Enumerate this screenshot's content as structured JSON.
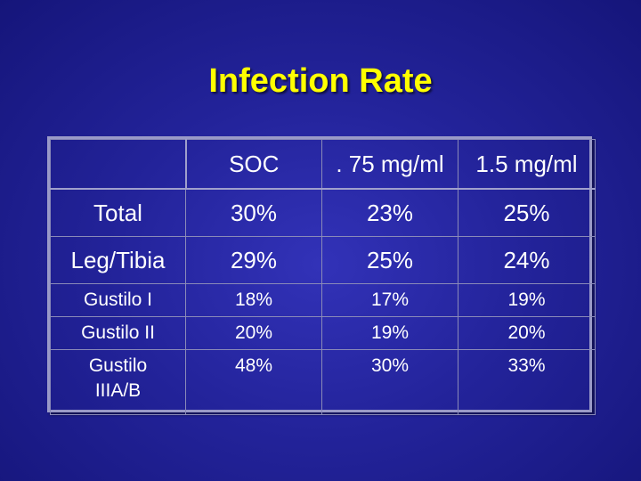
{
  "title": "Infection Rate",
  "table": {
    "header": [
      "",
      "SOC",
      ". 75 mg/ml",
      "1.5 mg/ml"
    ],
    "rows": [
      {
        "label": "Total",
        "soc": "30%",
        "dose075": "23%",
        "dose15": "25%"
      },
      {
        "label": "Leg/Tibia",
        "soc": "29%",
        "dose075": "25%",
        "dose15": "24%"
      },
      {
        "label": "Gustilo I",
        "soc": "18%",
        "dose075": "17%",
        "dose15": "19%"
      },
      {
        "label": "Gustilo II",
        "soc": "20%",
        "dose075": "19%",
        "dose15": "20%"
      },
      {
        "label_line1": "Gustilo",
        "label_line2": "IIIA/B",
        "soc": "48%",
        "dose075": "30%",
        "dose15": "33%"
      }
    ]
  },
  "colors": {
    "background": "#23239a",
    "title": "#ffff00",
    "text": "#ffffff",
    "grid": "#8a8ab8"
  }
}
